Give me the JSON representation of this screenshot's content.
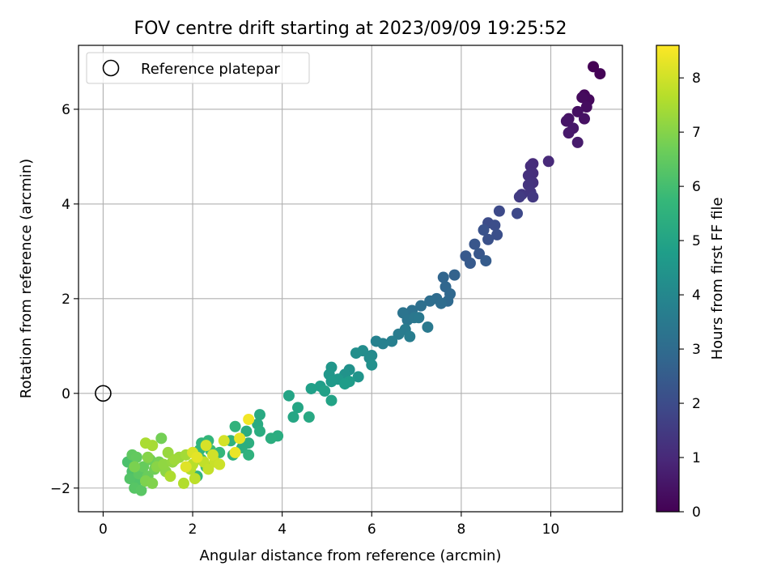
{
  "chart_data": {
    "type": "scatter",
    "title": "FOV centre drift starting at 2023/09/09 19:25:52",
    "xlabel": "Angular distance from reference (arcmin)",
    "ylabel": "Rotation from reference (arcmin)",
    "xlim": [
      -0.55,
      11.6
    ],
    "ylim": [
      -2.5,
      7.35
    ],
    "xticks": [
      0,
      2,
      4,
      6,
      8,
      10
    ],
    "xtick_labels": [
      "0",
      "2",
      "4",
      "6",
      "8",
      "10"
    ],
    "yticks": [
      -2,
      0,
      2,
      4,
      6
    ],
    "ytick_labels": [
      "−2",
      "0",
      "2",
      "4",
      "6"
    ],
    "grid": true,
    "legend_position": "upper-left",
    "legend": [
      {
        "label": "Reference platepar",
        "marker": "hollow-circle"
      }
    ],
    "reference_point": {
      "x": 0,
      "y": 0
    },
    "colorbar": {
      "label": "Hours from first FF file",
      "colormap": "viridis",
      "range": [
        0,
        8.6
      ],
      "ticks": [
        0,
        1,
        2,
        3,
        4,
        5,
        6,
        7,
        8
      ],
      "tick_labels": [
        "0",
        "1",
        "2",
        "3",
        "4",
        "5",
        "6",
        "7",
        "8"
      ]
    },
    "points": [
      {
        "x": 10.95,
        "y": 6.9,
        "c": 0.0
      },
      {
        "x": 11.1,
        "y": 6.75,
        "c": 0.05
      },
      {
        "x": 10.75,
        "y": 6.3,
        "c": 0.15
      },
      {
        "x": 10.85,
        "y": 6.2,
        "c": 0.2
      },
      {
        "x": 10.7,
        "y": 6.25,
        "c": 0.25
      },
      {
        "x": 10.8,
        "y": 6.05,
        "c": 0.3
      },
      {
        "x": 10.6,
        "y": 5.95,
        "c": 0.35
      },
      {
        "x": 10.75,
        "y": 5.8,
        "c": 0.4
      },
      {
        "x": 10.4,
        "y": 5.8,
        "c": 0.45
      },
      {
        "x": 10.35,
        "y": 5.75,
        "c": 0.5
      },
      {
        "x": 10.5,
        "y": 5.6,
        "c": 0.55
      },
      {
        "x": 10.4,
        "y": 5.5,
        "c": 0.6
      },
      {
        "x": 10.6,
        "y": 5.3,
        "c": 0.65
      },
      {
        "x": 9.95,
        "y": 4.9,
        "c": 1.0
      },
      {
        "x": 9.6,
        "y": 4.85,
        "c": 1.05
      },
      {
        "x": 9.55,
        "y": 4.8,
        "c": 1.1
      },
      {
        "x": 9.6,
        "y": 4.65,
        "c": 1.15
      },
      {
        "x": 9.5,
        "y": 4.6,
        "c": 1.2
      },
      {
        "x": 9.6,
        "y": 4.45,
        "c": 1.25
      },
      {
        "x": 9.5,
        "y": 4.4,
        "c": 1.3
      },
      {
        "x": 9.55,
        "y": 4.25,
        "c": 1.35
      },
      {
        "x": 9.35,
        "y": 4.2,
        "c": 1.4
      },
      {
        "x": 9.6,
        "y": 4.15,
        "c": 1.45
      },
      {
        "x": 9.3,
        "y": 4.15,
        "c": 1.5
      },
      {
        "x": 9.25,
        "y": 3.8,
        "c": 1.9
      },
      {
        "x": 8.85,
        "y": 3.85,
        "c": 1.95
      },
      {
        "x": 8.6,
        "y": 3.6,
        "c": 2.0
      },
      {
        "x": 8.75,
        "y": 3.55,
        "c": 2.05
      },
      {
        "x": 8.8,
        "y": 3.35,
        "c": 2.1
      },
      {
        "x": 8.6,
        "y": 3.25,
        "c": 2.15
      },
      {
        "x": 8.5,
        "y": 3.45,
        "c": 2.2
      },
      {
        "x": 8.3,
        "y": 3.15,
        "c": 2.3
      },
      {
        "x": 8.4,
        "y": 2.95,
        "c": 2.35
      },
      {
        "x": 8.1,
        "y": 2.9,
        "c": 2.4
      },
      {
        "x": 8.2,
        "y": 2.75,
        "c": 2.45
      },
      {
        "x": 8.55,
        "y": 2.8,
        "c": 2.5
      },
      {
        "x": 7.85,
        "y": 2.5,
        "c": 2.7
      },
      {
        "x": 7.6,
        "y": 2.45,
        "c": 2.8
      },
      {
        "x": 7.65,
        "y": 2.25,
        "c": 2.85
      },
      {
        "x": 7.75,
        "y": 2.1,
        "c": 2.9
      },
      {
        "x": 7.7,
        "y": 1.95,
        "c": 2.95
      },
      {
        "x": 7.45,
        "y": 2.0,
        "c": 3.0
      },
      {
        "x": 7.55,
        "y": 1.9,
        "c": 3.05
      },
      {
        "x": 7.3,
        "y": 1.95,
        "c": 3.1
      },
      {
        "x": 7.1,
        "y": 1.85,
        "c": 3.15
      },
      {
        "x": 6.9,
        "y": 1.75,
        "c": 3.2
      },
      {
        "x": 6.7,
        "y": 1.7,
        "c": 3.3
      },
      {
        "x": 6.8,
        "y": 1.55,
        "c": 3.35
      },
      {
        "x": 6.95,
        "y": 1.6,
        "c": 3.4
      },
      {
        "x": 7.05,
        "y": 1.6,
        "c": 3.45
      },
      {
        "x": 7.25,
        "y": 1.4,
        "c": 3.5
      },
      {
        "x": 6.75,
        "y": 1.35,
        "c": 3.55
      },
      {
        "x": 6.6,
        "y": 1.25,
        "c": 3.6
      },
      {
        "x": 6.85,
        "y": 1.2,
        "c": 3.65
      },
      {
        "x": 6.45,
        "y": 1.1,
        "c": 3.7
      },
      {
        "x": 6.25,
        "y": 1.05,
        "c": 3.75
      },
      {
        "x": 6.1,
        "y": 1.1,
        "c": 3.8
      },
      {
        "x": 6.0,
        "y": 0.8,
        "c": 4.1
      },
      {
        "x": 5.95,
        "y": 0.75,
        "c": 4.15
      },
      {
        "x": 5.8,
        "y": 0.9,
        "c": 4.2
      },
      {
        "x": 5.65,
        "y": 0.85,
        "c": 4.25
      },
      {
        "x": 6.0,
        "y": 0.6,
        "c": 4.3
      },
      {
        "x": 5.5,
        "y": 0.5,
        "c": 4.35
      },
      {
        "x": 5.4,
        "y": 0.4,
        "c": 4.4
      },
      {
        "x": 5.7,
        "y": 0.35,
        "c": 4.45
      },
      {
        "x": 5.1,
        "y": 0.55,
        "c": 4.5
      },
      {
        "x": 5.05,
        "y": 0.4,
        "c": 4.55
      },
      {
        "x": 5.25,
        "y": 0.3,
        "c": 4.6
      },
      {
        "x": 5.1,
        "y": 0.25,
        "c": 4.65
      },
      {
        "x": 5.5,
        "y": 0.25,
        "c": 4.7
      },
      {
        "x": 5.4,
        "y": 0.2,
        "c": 4.75
      },
      {
        "x": 4.85,
        "y": 0.15,
        "c": 4.8
      },
      {
        "x": 4.65,
        "y": 0.1,
        "c": 4.85
      },
      {
        "x": 4.95,
        "y": 0.05,
        "c": 4.9
      },
      {
        "x": 5.1,
        "y": -0.15,
        "c": 4.95
      },
      {
        "x": 4.15,
        "y": -0.05,
        "c": 5.0
      },
      {
        "x": 4.35,
        "y": -0.3,
        "c": 5.05
      },
      {
        "x": 4.25,
        "y": -0.5,
        "c": 5.1
      },
      {
        "x": 4.6,
        "y": -0.5,
        "c": 5.15
      },
      {
        "x": 3.5,
        "y": -0.45,
        "c": 5.2
      },
      {
        "x": 3.45,
        "y": -0.65,
        "c": 5.25
      },
      {
        "x": 3.5,
        "y": -0.8,
        "c": 5.3
      },
      {
        "x": 3.2,
        "y": -0.8,
        "c": 5.3
      },
      {
        "x": 3.9,
        "y": -0.9,
        "c": 5.3
      },
      {
        "x": 3.75,
        "y": -0.95,
        "c": 5.35
      },
      {
        "x": 3.25,
        "y": -1.05,
        "c": 5.4
      },
      {
        "x": 3.1,
        "y": -1.15,
        "c": 5.4
      },
      {
        "x": 2.85,
        "y": -1.0,
        "c": 5.5
      },
      {
        "x": 2.9,
        "y": -1.3,
        "c": 5.5
      },
      {
        "x": 3.25,
        "y": -1.3,
        "c": 5.5
      },
      {
        "x": 2.95,
        "y": -0.7,
        "c": 5.55
      },
      {
        "x": 2.2,
        "y": -1.05,
        "c": 5.6
      },
      {
        "x": 2.15,
        "y": -1.2,
        "c": 5.6
      },
      {
        "x": 2.1,
        "y": -1.75,
        "c": 5.6
      },
      {
        "x": 2.35,
        "y": -1.0,
        "c": 5.65
      },
      {
        "x": 2.6,
        "y": -1.25,
        "c": 5.7
      },
      {
        "x": 2.2,
        "y": -1.4,
        "c": 5.75
      },
      {
        "x": 2.3,
        "y": -1.55,
        "c": 5.8
      },
      {
        "x": 2.4,
        "y": -1.2,
        "c": 5.9
      },
      {
        "x": 0.55,
        "y": -1.45,
        "c": 6.1
      },
      {
        "x": 0.65,
        "y": -1.65,
        "c": 6.15
      },
      {
        "x": 0.75,
        "y": -1.85,
        "c": 6.2
      },
      {
        "x": 0.6,
        "y": -1.8,
        "c": 6.25
      },
      {
        "x": 0.7,
        "y": -2.0,
        "c": 6.3
      },
      {
        "x": 0.85,
        "y": -2.05,
        "c": 6.35
      },
      {
        "x": 0.8,
        "y": -1.7,
        "c": 6.4
      },
      {
        "x": 0.65,
        "y": -1.3,
        "c": 6.45
      },
      {
        "x": 0.75,
        "y": -1.35,
        "c": 6.5
      },
      {
        "x": 0.9,
        "y": -1.55,
        "c": 6.55
      },
      {
        "x": 1.0,
        "y": -1.75,
        "c": 6.6
      },
      {
        "x": 1.05,
        "y": -1.4,
        "c": 6.65
      },
      {
        "x": 1.15,
        "y": -1.6,
        "c": 6.7
      },
      {
        "x": 1.3,
        "y": -0.95,
        "c": 6.75
      },
      {
        "x": 1.25,
        "y": -1.45,
        "c": 6.8
      },
      {
        "x": 0.7,
        "y": -1.55,
        "c": 6.85
      },
      {
        "x": 0.95,
        "y": -1.85,
        "c": 6.9
      },
      {
        "x": 1.1,
        "y": -1.9,
        "c": 6.95
      },
      {
        "x": 1.0,
        "y": -1.35,
        "c": 7.0
      },
      {
        "x": 1.2,
        "y": -1.55,
        "c": 7.05
      },
      {
        "x": 1.4,
        "y": -1.65,
        "c": 7.1
      },
      {
        "x": 1.35,
        "y": -1.5,
        "c": 7.15
      },
      {
        "x": 1.55,
        "y": -1.45,
        "c": 7.2
      },
      {
        "x": 1.45,
        "y": -1.25,
        "c": 7.25
      },
      {
        "x": 1.7,
        "y": -1.35,
        "c": 7.3
      },
      {
        "x": 1.6,
        "y": -1.4,
        "c": 7.35
      },
      {
        "x": 1.85,
        "y": -1.3,
        "c": 7.4
      },
      {
        "x": 1.1,
        "y": -1.1,
        "c": 7.45
      },
      {
        "x": 0.95,
        "y": -1.05,
        "c": 7.5
      },
      {
        "x": 1.5,
        "y": -1.75,
        "c": 7.55
      },
      {
        "x": 1.8,
        "y": -1.9,
        "c": 7.6
      },
      {
        "x": 1.95,
        "y": -1.6,
        "c": 7.65
      },
      {
        "x": 2.0,
        "y": -1.5,
        "c": 7.7
      },
      {
        "x": 2.05,
        "y": -1.8,
        "c": 7.75
      },
      {
        "x": 2.25,
        "y": -1.45,
        "c": 7.8
      },
      {
        "x": 2.35,
        "y": -1.6,
        "c": 7.85
      },
      {
        "x": 2.5,
        "y": -1.45,
        "c": 7.9
      },
      {
        "x": 2.6,
        "y": -1.5,
        "c": 7.95
      },
      {
        "x": 2.45,
        "y": -1.3,
        "c": 8.0
      },
      {
        "x": 2.7,
        "y": -1.0,
        "c": 8.05
      },
      {
        "x": 2.3,
        "y": -1.1,
        "c": 8.1
      },
      {
        "x": 2.0,
        "y": -1.25,
        "c": 8.15
      },
      {
        "x": 1.85,
        "y": -1.55,
        "c": 8.2
      },
      {
        "x": 2.1,
        "y": -1.35,
        "c": 8.25
      },
      {
        "x": 3.05,
        "y": -0.95,
        "c": 8.3
      },
      {
        "x": 2.95,
        "y": -1.25,
        "c": 8.35
      },
      {
        "x": 3.25,
        "y": -0.55,
        "c": 8.45
      }
    ]
  }
}
